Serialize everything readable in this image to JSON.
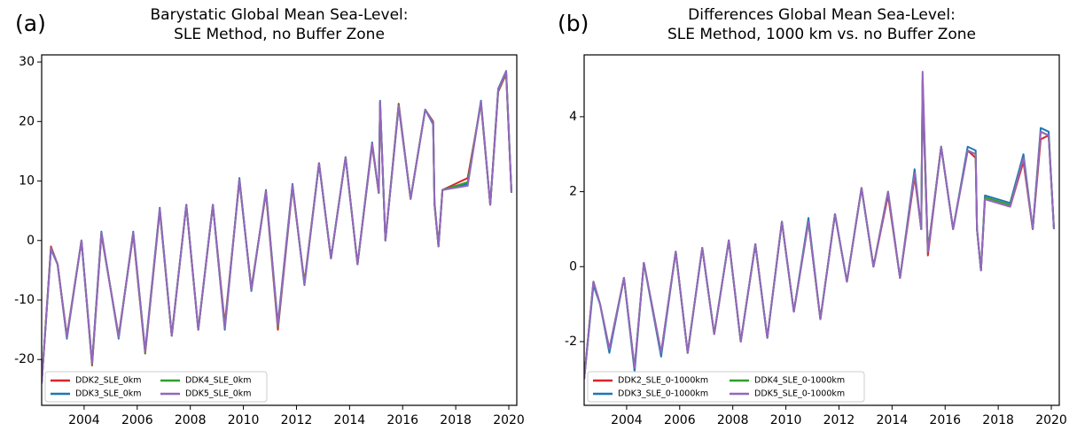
{
  "chart_data": [
    {
      "type": "line",
      "panel_label": "(a)",
      "title": [
        "Barystatic Global Mean Sea-Level:",
        "SLE Method, no Buffer Zone"
      ],
      "x": [
        2002.4,
        2002.75,
        2003.0,
        2003.35,
        2003.9,
        2004.3,
        2004.65,
        2005.3,
        2005.85,
        2006.3,
        2006.85,
        2007.3,
        2007.85,
        2008.3,
        2008.85,
        2009.3,
        2009.85,
        2010.3,
        2010.85,
        2011.3,
        2011.85,
        2012.3,
        2012.85,
        2013.3,
        2013.85,
        2014.3,
        2014.85,
        2015.1,
        2015.15,
        2015.35,
        2015.85,
        2016.3,
        2016.85,
        2017.15,
        2017.2,
        2017.35,
        2017.5,
        2018.45,
        2018.95,
        2019.3,
        2019.6,
        2019.9,
        2020.1
      ],
      "series": [
        {
          "name": "DDK2_SLE_0km",
          "color": "#d62728",
          "values": [
            -24,
            -1,
            -4,
            -16,
            0,
            -21,
            1,
            -16,
            1,
            -19,
            5,
            -16,
            6,
            -15,
            6,
            -14,
            10,
            -8,
            8,
            -15,
            9,
            -7,
            13,
            -3,
            14,
            -4,
            16,
            8,
            23,
            0,
            23,
            7,
            22,
            20,
            6,
            -1,
            8.5,
            10.5,
            23,
            6,
            25,
            28,
            8
          ]
        },
        {
          "name": "DDK3_SLE_0km",
          "color": "#1f77b4",
          "values": [
            -24,
            -1.5,
            -4,
            -16.5,
            0,
            -20.5,
            1.5,
            -16.5,
            1.5,
            -18.5,
            5.5,
            -16,
            6,
            -15,
            6,
            -15,
            10.5,
            -8.5,
            8.5,
            -14,
            9.5,
            -7.5,
            13,
            -3,
            14,
            -4,
            16.5,
            8,
            23.5,
            0,
            22.5,
            7,
            22,
            19.5,
            6.5,
            -1,
            8.5,
            9.5,
            23.5,
            6,
            25.5,
            28.5,
            8
          ]
        },
        {
          "name": "DDK4_SLE_0km",
          "color": "#2ca02c",
          "values": [
            -24,
            -1.2,
            -4,
            -16.2,
            0,
            -20.8,
            1.2,
            -16.2,
            1.2,
            -18.8,
            5.2,
            -16,
            6,
            -15,
            6,
            -14.5,
            10.2,
            -8.2,
            8.2,
            -14.5,
            9.2,
            -7.2,
            13,
            -3,
            14,
            -4,
            16.2,
            8,
            23.2,
            0,
            22.8,
            7,
            22,
            19.8,
            6.2,
            -1,
            8.5,
            9.8,
            23.2,
            6,
            25.2,
            28.2,
            8
          ]
        },
        {
          "name": "DDK5_SLE_0km",
          "color": "#9467bd",
          "values": [
            -24,
            -1.3,
            -4,
            -16.3,
            0,
            -20.6,
            1.3,
            -16.3,
            1.3,
            -18.6,
            5.3,
            -16,
            6,
            -15,
            6,
            -14.7,
            10.3,
            -8.3,
            8.3,
            -14.3,
            9.3,
            -7.3,
            13,
            -3,
            14,
            -4,
            16.3,
            8,
            23.4,
            0,
            22.6,
            7,
            22,
            19.7,
            6.3,
            -1,
            8.5,
            9.2,
            23.3,
            6,
            25.3,
            28.4,
            8
          ]
        }
      ],
      "xlim": [
        2002.4,
        2020.3
      ],
      "ylim": [
        -27.7,
        31.2
      ],
      "xticks": [
        2004,
        2006,
        2008,
        2010,
        2012,
        2014,
        2016,
        2018,
        2020
      ],
      "yticks": [
        -20,
        -10,
        0,
        10,
        20,
        30
      ]
    },
    {
      "type": "line",
      "panel_label": "(b)",
      "title": [
        "Differences Global Mean Sea-Level:",
        "SLE Method, 1000 km vs. no Buffer Zone"
      ],
      "x": [
        2002.4,
        2002.75,
        2003.0,
        2003.35,
        2003.9,
        2004.3,
        2004.65,
        2005.3,
        2005.85,
        2006.3,
        2006.85,
        2007.3,
        2007.85,
        2008.3,
        2008.85,
        2009.3,
        2009.85,
        2010.3,
        2010.85,
        2011.3,
        2011.85,
        2012.3,
        2012.85,
        2013.3,
        2013.85,
        2014.3,
        2014.85,
        2015.1,
        2015.15,
        2015.35,
        2015.85,
        2016.3,
        2016.85,
        2017.15,
        2017.2,
        2017.35,
        2017.5,
        2018.45,
        2018.95,
        2019.3,
        2019.6,
        2019.9,
        2020.1
      ],
      "series": [
        {
          "name": "DDK2_SLE_0-1000km",
          "color": "#d62728",
          "values": [
            -3,
            -0.4,
            -1,
            -2.2,
            -0.3,
            -2.7,
            0.1,
            -2.3,
            0.4,
            -2.3,
            0.5,
            -1.8,
            0.7,
            -2,
            0.6,
            -1.9,
            1.2,
            -1.2,
            1.2,
            -1.4,
            1.4,
            -0.4,
            2.1,
            0,
            1.9,
            -0.3,
            2.4,
            1,
            4.8,
            0.3,
            3.2,
            1,
            3.1,
            2.9,
            1,
            -0.1,
            1.8,
            1.6,
            2.8,
            1,
            3.4,
            3.5,
            1
          ]
        },
        {
          "name": "DDK3_SLE_0-1000km",
          "color": "#1f77b4",
          "values": [
            -3,
            -0.5,
            -1,
            -2.3,
            -0.3,
            -2.8,
            0.1,
            -2.4,
            0.4,
            -2.3,
            0.5,
            -1.8,
            0.7,
            -2,
            0.6,
            -1.9,
            1.2,
            -1.2,
            1.3,
            -1.4,
            1.4,
            -0.4,
            2.1,
            0,
            2,
            -0.3,
            2.6,
            1,
            4.9,
            0.4,
            3.2,
            1,
            3.2,
            3.1,
            1,
            -0.1,
            1.9,
            1.7,
            3,
            1,
            3.7,
            3.6,
            1
          ]
        },
        {
          "name": "DDK4_SLE_0-1000km",
          "color": "#2ca02c",
          "values": [
            -3,
            -0.4,
            -1,
            -2.2,
            -0.3,
            -2.7,
            0.1,
            -2.3,
            0.4,
            -2.3,
            0.5,
            -1.8,
            0.7,
            -2,
            0.6,
            -1.9,
            1.2,
            -1.2,
            1.2,
            -1.4,
            1.4,
            -0.4,
            2.1,
            0,
            2,
            -0.3,
            2.5,
            1,
            5,
            0.4,
            3.2,
            1,
            3.1,
            3,
            1,
            -0.1,
            1.85,
            1.65,
            2.9,
            1,
            3.6,
            3.5,
            1
          ]
        },
        {
          "name": "DDK5_SLE_0-1000km",
          "color": "#9467bd",
          "values": [
            -3,
            -0.4,
            -1,
            -2.2,
            -0.3,
            -2.7,
            0.1,
            -2.3,
            0.4,
            -2.3,
            0.5,
            -1.8,
            0.7,
            -2,
            0.6,
            -1.9,
            1.2,
            -1.2,
            1.2,
            -1.4,
            1.4,
            -0.4,
            2.1,
            0,
            2,
            -0.3,
            2.5,
            1,
            5.2,
            0.4,
            3.2,
            1,
            3.1,
            3,
            1,
            -0.1,
            1.8,
            1.6,
            2.9,
            1,
            3.6,
            3.5,
            1
          ]
        }
      ],
      "xlim": [
        2002.4,
        2020.3
      ],
      "ylim": [
        -3.7,
        5.65
      ],
      "xticks": [
        2004,
        2006,
        2008,
        2010,
        2012,
        2014,
        2016,
        2018,
        2020
      ],
      "yticks": [
        -2,
        0,
        2,
        4
      ]
    }
  ]
}
